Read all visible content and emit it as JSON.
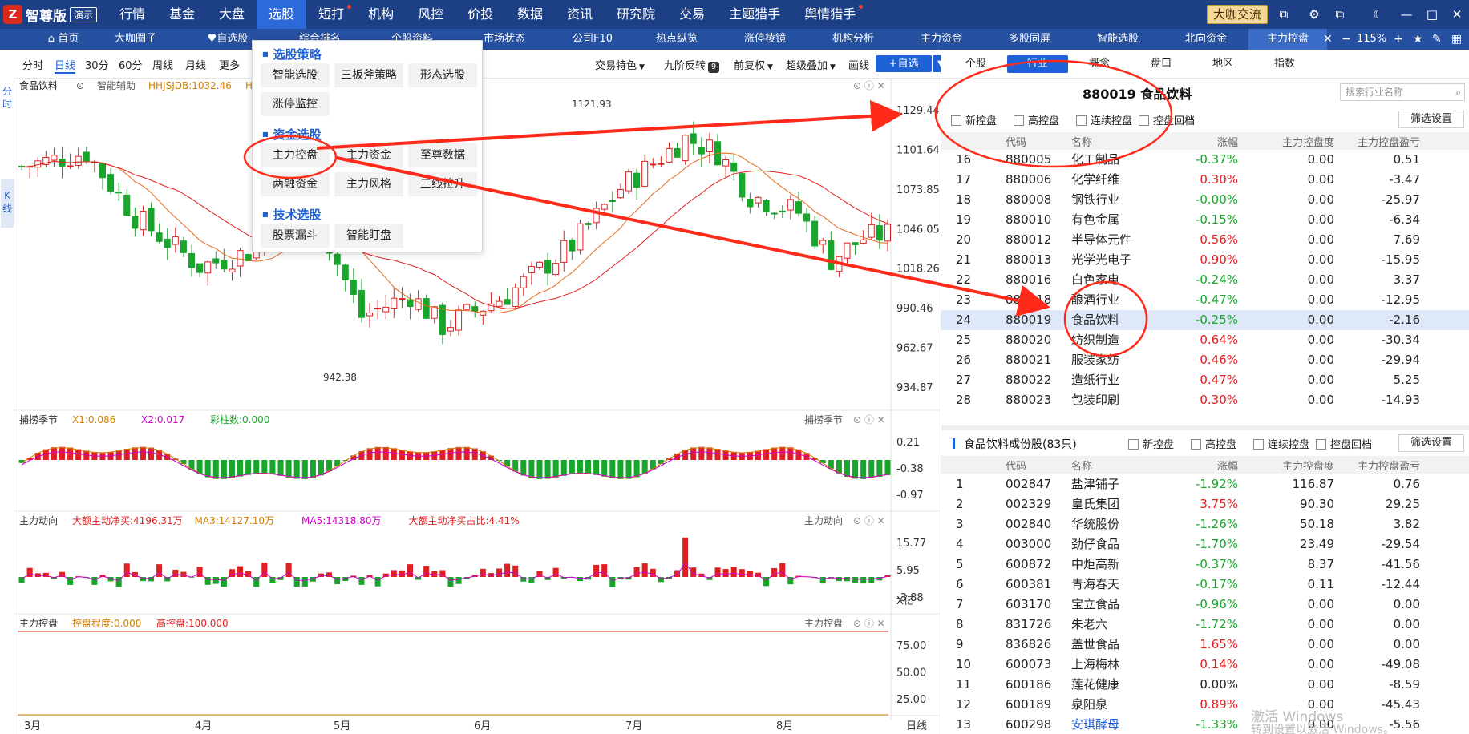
{
  "topbar": {
    "logo_name": "智尊版",
    "demo_label": "演示",
    "menu": [
      {
        "label": "行情",
        "dot": false
      },
      {
        "label": "基金",
        "dot": false
      },
      {
        "label": "大盘",
        "dot": false
      },
      {
        "label": "选股",
        "dot": false
      },
      {
        "label": "短打",
        "dot": true
      },
      {
        "label": "机构",
        "dot": false
      },
      {
        "label": "风控",
        "dot": false
      },
      {
        "label": "价投",
        "dot": false
      },
      {
        "label": "数据",
        "dot": false
      },
      {
        "label": "资讯",
        "dot": false
      },
      {
        "label": "研究院",
        "dot": false
      },
      {
        "label": "交易",
        "dot": false
      },
      {
        "label": "主题猎手",
        "dot": false
      },
      {
        "label": "舆情猎手",
        "dot": true
      }
    ],
    "active_menu": "选股",
    "dakaji_label": "大咖交流"
  },
  "tabbar": {
    "tabs": [
      "首页",
      "大咖圈子",
      "自选股",
      "综合排名",
      "个股资料",
      "市场状态",
      "公司F10",
      "热点纵览",
      "涨停棱镜",
      "机构分析",
      "主力资金",
      "多股同屏",
      "智能选股",
      "北向资金",
      "主力控盘"
    ],
    "active_tab": "主力控盘",
    "zoom": "115%"
  },
  "leftstrip": {
    "items": [
      "分",
      "时",
      "K",
      "线"
    ]
  },
  "toolbar": {
    "periods": [
      "分时",
      "日线",
      "30分",
      "60分",
      "周线",
      "月线",
      "更多"
    ],
    "active_period": "日线",
    "tools": [
      "交易特色",
      "九阶反转",
      "前复权",
      "超级叠加",
      "画线"
    ],
    "badge": "9",
    "add_label": "+自选"
  },
  "chart_header": {
    "name": "食品饮料",
    "assist": "智能辅助",
    "index_label": "HHJSJDB:1032.46",
    "index_prefix": "H"
  },
  "dropdown": {
    "sections": [
      {
        "title": "选股策略",
        "items": [
          [
            "智能选股",
            "三板斧策略",
            "形态选股"
          ],
          [
            "涨停监控"
          ]
        ]
      },
      {
        "title": "资金选股",
        "items": [
          [
            "主力控盘",
            "主力资金",
            "至尊数据"
          ],
          [
            "两融资金",
            "主力风格",
            "三线拉升"
          ]
        ]
      },
      {
        "title": "技术选股",
        "items": [
          [
            "股票漏斗",
            "智能盯盘"
          ]
        ]
      }
    ]
  },
  "chart_data": {
    "type": "candlestick",
    "price_axis": [
      "1129.44",
      "1101.64",
      "1073.85",
      "1046.05",
      "1018.26",
      "990.46",
      "962.67",
      "934.87"
    ],
    "high_label": "1121.93",
    "low_label": "942.38",
    "months": [
      "3月",
      "4月",
      "5月",
      "6月",
      "7月",
      "8月"
    ],
    "period_label": "日线",
    "panels": [
      {
        "name": "捕捞季节",
        "labels": [
          [
            "X1:0.086",
            "#d08000"
          ],
          [
            "X2:0.017",
            "#d000d0"
          ],
          [
            "彩柱数:0.000",
            "#17a52a"
          ]
        ],
        "axis": [
          "0.21",
          "-0.38",
          "-0.97"
        ]
      },
      {
        "name": "主力动向",
        "labels": [
          [
            "大额主动净买:4196.31万",
            "#e02020"
          ],
          [
            "MA3:14127.10万",
            "#d08000"
          ],
          [
            "MA5:14318.80万",
            "#d000d0"
          ],
          [
            "大额主动净买占比:4.41%",
            "#e02020"
          ]
        ],
        "axis": [
          "15.77",
          "5.95",
          "-3.88"
        ],
        "unit": "X亿"
      },
      {
        "name": "主力控盘",
        "labels": [
          [
            "控盘程度:0.000",
            "#d08000"
          ],
          [
            "高控盘:100.000",
            "#e02020"
          ]
        ],
        "axis": [
          "75.00",
          "50.00",
          "25.00"
        ]
      }
    ]
  },
  "rightpanel": {
    "tabs": [
      "个股",
      "行业",
      "概念",
      "盘口",
      "地区",
      "指数"
    ],
    "active_tab": "行业",
    "title": "880019  食品饮料",
    "search_placeholder": "搜索行业名称",
    "filters": [
      "新控盘",
      "高控盘",
      "连续控盘",
      "控盘回档"
    ],
    "filter_button": "筛选设置",
    "columns": [
      "代码",
      "名称",
      "涨幅",
      "主力控盘度",
      "主力控盘盈亏"
    ],
    "industry_rows": [
      [
        "16",
        "880005",
        "化工制品",
        "-0.37%",
        "0.00",
        "0.51"
      ],
      [
        "17",
        "880006",
        "化学纤维",
        "0.30%",
        "0.00",
        "-3.47"
      ],
      [
        "18",
        "880008",
        "钢铁行业",
        "-0.00%",
        "0.00",
        "-25.97"
      ],
      [
        "19",
        "880010",
        "有色金属",
        "-0.15%",
        "0.00",
        "-6.34"
      ],
      [
        "20",
        "880012",
        "半导体元件",
        "0.56%",
        "0.00",
        "7.69"
      ],
      [
        "21",
        "880013",
        "光学光电子",
        "0.90%",
        "0.00",
        "-15.95"
      ],
      [
        "22",
        "880016",
        "白色家电",
        "-0.24%",
        "0.00",
        "3.37"
      ],
      [
        "23",
        "880018",
        "酿酒行业",
        "-0.47%",
        "0.00",
        "-12.95"
      ],
      [
        "24",
        "880019",
        "食品饮料",
        "-0.25%",
        "0.00",
        "-2.16"
      ],
      [
        "25",
        "880020",
        "纺织制造",
        "0.64%",
        "0.00",
        "-30.34"
      ],
      [
        "26",
        "880021",
        "服装家纺",
        "0.46%",
        "0.00",
        "-29.94"
      ],
      [
        "27",
        "880022",
        "造纸行业",
        "0.47%",
        "0.00",
        "5.25"
      ],
      [
        "28",
        "880023",
        "包装印刷",
        "0.30%",
        "0.00",
        "-14.93"
      ]
    ],
    "selected_row": "24",
    "sub_title": "食品饮料成份股(83只)",
    "stock_rows": [
      [
        "1",
        "002847",
        "盐津铺子",
        "-1.92%",
        "116.87",
        "0.76"
      ],
      [
        "2",
        "002329",
        "皇氏集团",
        "3.75%",
        "90.30",
        "29.25"
      ],
      [
        "3",
        "002840",
        "华统股份",
        "-1.26%",
        "50.18",
        "3.82"
      ],
      [
        "4",
        "003000",
        "劲仔食品",
        "-1.70%",
        "23.49",
        "-29.54"
      ],
      [
        "5",
        "600872",
        "中炬高新",
        "-0.37%",
        "8.37",
        "-41.56"
      ],
      [
        "6",
        "600381",
        "青海春天",
        "-0.17%",
        "0.11",
        "-12.44"
      ],
      [
        "7",
        "603170",
        "宝立食品",
        "-0.96%",
        "0.00",
        "0.00"
      ],
      [
        "8",
        "831726",
        "朱老六",
        "-1.72%",
        "0.00",
        "0.00"
      ],
      [
        "9",
        "836826",
        "盖世食品",
        "1.65%",
        "0.00",
        "0.00"
      ],
      [
        "10",
        "600073",
        "上海梅林",
        "0.14%",
        "0.00",
        "-49.08"
      ],
      [
        "11",
        "600186",
        "莲花健康",
        "0.00%",
        "0.00",
        "-8.59"
      ],
      [
        "12",
        "600189",
        "泉阳泉",
        "0.89%",
        "0.00",
        "-45.43"
      ],
      [
        "13",
        "600298",
        "安琪酵母",
        "-1.33%",
        "0.00",
        "-5.56"
      ]
    ]
  },
  "watermark": {
    "line1": "激活 Windows",
    "line2": "转到设置以激活 Windows。"
  },
  "colors": {
    "topbar": "#1c3f86",
    "accent": "#1e60d6",
    "up": "#e02020",
    "down": "#17a52a",
    "annotation": "#ff2a1a"
  }
}
